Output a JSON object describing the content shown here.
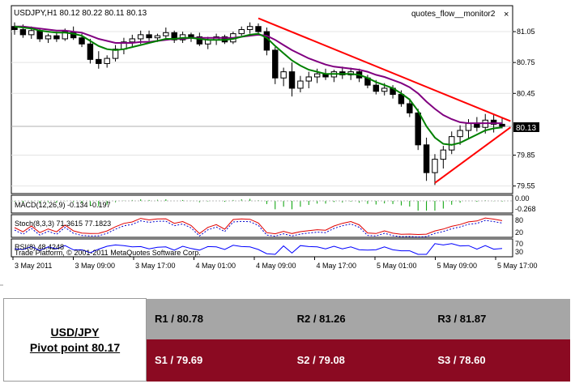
{
  "chart_data": {
    "type": "candlestick",
    "symbol_header": "USDJPY,H1  80.12 80.22 80.11 80.13",
    "indicator_label": "quotes_flow__monitor2",
    "close_symbol": "×",
    "current_price": "80.13",
    "y_ticks": [
      "81.05",
      "80.75",
      "80.45",
      "79.85",
      "79.55"
    ],
    "ylim": [
      79.5,
      81.2
    ],
    "x_ticks": [
      "3 May 2011",
      "3 May 09:00",
      "3 May 17:00",
      "4 May 01:00",
      "4 May 09:00",
      "4 May 17:00",
      "5 May 01:00",
      "5 May 09:00",
      "5 May 17:00"
    ],
    "candles": [
      [
        81.1,
        81.14,
        81.02,
        81.07
      ],
      [
        81.07,
        81.12,
        80.99,
        81.02
      ],
      [
        81.02,
        81.1,
        80.98,
        81.06
      ],
      [
        81.06,
        81.08,
        80.95,
        80.98
      ],
      [
        80.98,
        81.03,
        80.94,
        81.01
      ],
      [
        81.01,
        81.05,
        80.95,
        80.98
      ],
      [
        80.98,
        81.08,
        80.96,
        81.05
      ],
      [
        81.05,
        81.1,
        80.97,
        80.99
      ],
      [
        80.99,
        81.03,
        80.9,
        80.93
      ],
      [
        80.93,
        80.98,
        80.74,
        80.78
      ],
      [
        80.78,
        80.86,
        80.69,
        80.74
      ],
      [
        80.74,
        80.82,
        80.7,
        80.79
      ],
      [
        80.79,
        80.92,
        80.76,
        80.88
      ],
      [
        80.88,
        80.99,
        80.83,
        80.95
      ],
      [
        80.95,
        81.02,
        80.9,
        80.98
      ],
      [
        80.98,
        81.06,
        80.93,
        81.02
      ],
      [
        81.02,
        81.06,
        80.96,
        80.99
      ],
      [
        80.99,
        81.03,
        80.95,
        81.01
      ],
      [
        81.01,
        81.09,
        80.97,
        81.04
      ],
      [
        81.04,
        81.06,
        80.94,
        80.97
      ],
      [
        80.97,
        81.05,
        80.94,
        81.02
      ],
      [
        81.02,
        81.04,
        80.95,
        81.0
      ],
      [
        81.0,
        81.04,
        80.91,
        80.93
      ],
      [
        80.93,
        81.0,
        80.88,
        80.97
      ],
      [
        80.97,
        81.03,
        80.92,
        81.0
      ],
      [
        81.0,
        81.02,
        80.93,
        80.95
      ],
      [
        80.95,
        81.05,
        80.93,
        81.03
      ],
      [
        81.03,
        81.1,
        81.01,
        81.07
      ],
      [
        81.07,
        81.14,
        81.03,
        81.1
      ],
      [
        81.1,
        81.13,
        81.02,
        81.05
      ],
      [
        81.05,
        81.09,
        80.82,
        80.87
      ],
      [
        80.87,
        80.9,
        80.54,
        80.6
      ],
      [
        80.6,
        80.7,
        80.52,
        80.66
      ],
      [
        80.66,
        80.75,
        80.42,
        80.5
      ],
      [
        80.5,
        80.62,
        80.46,
        80.57
      ],
      [
        80.57,
        80.66,
        80.5,
        80.61
      ],
      [
        80.61,
        80.69,
        80.55,
        80.64
      ],
      [
        80.64,
        80.69,
        80.58,
        80.61
      ],
      [
        80.61,
        80.68,
        80.56,
        80.66
      ],
      [
        80.66,
        80.71,
        80.59,
        80.63
      ],
      [
        80.63,
        80.7,
        80.58,
        80.66
      ],
      [
        80.66,
        80.69,
        80.56,
        80.6
      ],
      [
        80.6,
        80.63,
        80.5,
        80.53
      ],
      [
        80.53,
        80.58,
        80.44,
        80.47
      ],
      [
        80.47,
        80.55,
        80.43,
        80.5
      ],
      [
        80.5,
        80.53,
        80.4,
        80.44
      ],
      [
        80.44,
        80.48,
        80.32,
        80.35
      ],
      [
        80.35,
        80.4,
        80.22,
        80.26
      ],
      [
        80.26,
        80.3,
        79.9,
        79.95
      ],
      [
        79.95,
        80.02,
        79.6,
        79.68
      ],
      [
        79.68,
        79.86,
        79.56,
        79.81
      ],
      [
        79.81,
        79.94,
        79.72,
        79.9
      ],
      [
        79.9,
        80.08,
        79.86,
        80.03
      ],
      [
        80.03,
        80.14,
        79.95,
        80.09
      ],
      [
        80.09,
        80.2,
        80.01,
        80.16
      ],
      [
        80.16,
        80.22,
        80.08,
        80.12
      ],
      [
        80.12,
        80.25,
        80.06,
        80.19
      ],
      [
        80.19,
        80.24,
        80.07,
        80.15
      ],
      [
        80.15,
        80.22,
        80.11,
        80.13
      ]
    ],
    "moving_averages": [
      {
        "color": "#800080",
        "values": [
          81.1,
          81.1,
          81.09,
          81.08,
          81.07,
          81.06,
          81.06,
          81.05,
          81.04,
          81.01,
          80.98,
          80.96,
          80.94,
          80.94,
          80.94,
          80.95,
          80.95,
          80.96,
          80.97,
          80.98,
          80.98,
          80.99,
          80.99,
          80.99,
          80.99,
          80.99,
          80.99,
          81.0,
          81.01,
          81.02,
          81.01,
          80.97,
          80.92,
          80.87,
          80.83,
          80.79,
          80.76,
          80.73,
          80.71,
          80.7,
          80.69,
          80.68,
          80.66,
          80.63,
          80.61,
          80.58,
          80.55,
          80.51,
          80.45,
          80.37,
          80.3,
          80.24,
          80.2,
          80.17,
          80.16,
          80.16,
          80.16,
          80.16,
          80.16
        ]
      },
      {
        "color": "#008000",
        "values": [
          81.1,
          81.09,
          81.08,
          81.06,
          81.05,
          81.04,
          81.04,
          81.03,
          81.01,
          80.96,
          80.91,
          80.88,
          80.87,
          80.88,
          80.9,
          80.92,
          80.94,
          80.96,
          80.98,
          80.98,
          80.99,
          80.99,
          80.98,
          80.97,
          80.97,
          80.97,
          80.98,
          81.0,
          81.02,
          81.03,
          80.99,
          80.91,
          80.84,
          80.77,
          80.72,
          80.68,
          80.66,
          80.64,
          80.64,
          80.64,
          80.64,
          80.63,
          80.6,
          80.56,
          80.53,
          80.5,
          80.45,
          80.39,
          80.28,
          80.13,
          80.02,
          79.96,
          79.95,
          79.97,
          80.01,
          80.05,
          80.09,
          80.11,
          80.12
        ]
      }
    ],
    "annotations": [
      {
        "type": "trendline",
        "color": "#ff0000",
        "from": [
          29.0,
          81.18
        ],
        "to": [
          59.0,
          80.18
        ]
      },
      {
        "type": "trendline",
        "color": "#ff0000",
        "from": [
          50.0,
          79.58
        ],
        "to": [
          59.0,
          80.12
        ]
      }
    ],
    "subpanels": [
      {
        "label": "MACD(12,26,9) -0.134 -0.197",
        "axis_labels": [
          "0.00",
          "-0.268"
        ]
      },
      {
        "label": "Stoch(8,3,3) 71.3615 77.1823",
        "axis_labels": [
          "80",
          "20"
        ]
      },
      {
        "label": "RSI(8) 48.4248",
        "axis_labels": [
          "70",
          "30"
        ]
      }
    ],
    "copyright": "Trade Platform, © 2001-2011 MetaQuotes Software Corp."
  },
  "pivot_table": {
    "pair": "USD/JPY",
    "pivot": "Pivot point 80.17",
    "resistance": [
      "R1 / 80.78",
      "R2 / 81.26",
      "R3 / 81.87"
    ],
    "support": [
      "S1 / 79.69",
      "S2 / 79.08",
      "S3 / 78.60"
    ]
  },
  "colors": {
    "support_bg": "#8b0a22",
    "resistance_bg": "#a6a6a6",
    "ma_purple": "#800080",
    "ma_green": "#008000",
    "trend_red": "#ff0000"
  }
}
